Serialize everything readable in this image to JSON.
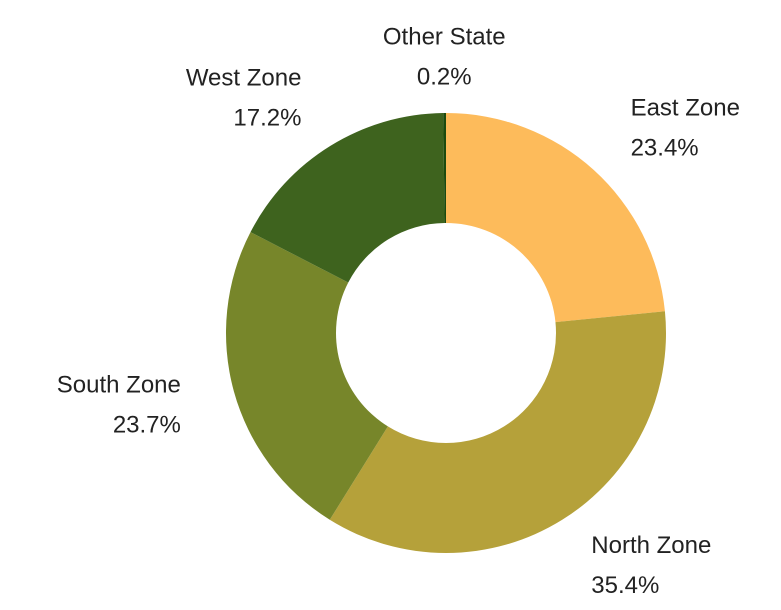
{
  "chart_data": {
    "type": "donut",
    "categories": [
      "East Zone",
      "North Zone",
      "South Zone",
      "West Zone",
      "Other State"
    ],
    "values": [
      23.4,
      35.4,
      23.7,
      17.2,
      0.2
    ],
    "value_labels": [
      "23.4%",
      "35.4%",
      "23.7%",
      "17.2%",
      "0.2%"
    ],
    "colors": [
      "#fdbb5b",
      "#b5a13a",
      "#77862a",
      "#3e631e",
      "#1c4a0e"
    ]
  }
}
